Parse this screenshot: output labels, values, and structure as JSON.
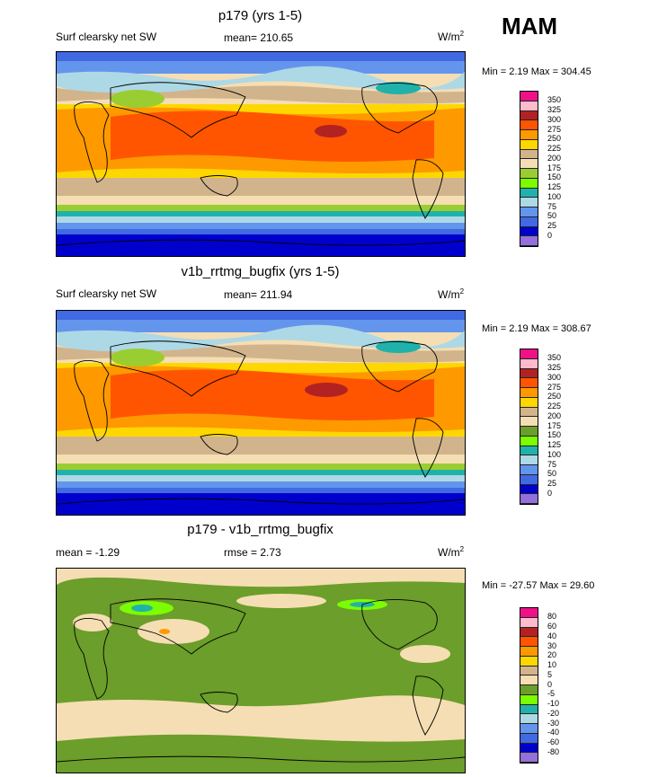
{
  "season": "MAM",
  "units_main": "W/m",
  "units_sup": "2",
  "units_diff": "W/m",
  "panels": [
    {
      "title": "p179 (yrs 1-5)",
      "variable": "Surf clearsky net SW",
      "mean_text": "mean= 210.65",
      "minmax_text": "Min =   2.19 Max = 304.45"
    },
    {
      "title": "v1b_rrtmg_bugfix (yrs 1-5)",
      "variable": "Surf clearsky net SW",
      "mean_text": "mean= 211.94",
      "minmax_text": "Min =   2.19 Max = 308.67"
    },
    {
      "title": "p179 - v1b_rrtmg_bugfix",
      "mean_text": "mean =  -1.29",
      "rmse_text": "rmse =   2.73",
      "minmax_text": "Min = -27.57 Max =  29.60"
    }
  ],
  "colorbar_abs": {
    "labels": [
      "350",
      "325",
      "300",
      "275",
      "250",
      "225",
      "200",
      "175",
      "150",
      "125",
      "100",
      "75",
      "50",
      "25",
      "0"
    ],
    "colors": [
      "#ee1188",
      "#ffbbcc",
      "#b22222",
      "#ff5500",
      "#ff9900",
      "#ffd700",
      "#d2b48c",
      "#f5deb3",
      "#9acd32",
      "#7cfc00",
      "#20b2aa",
      "#add8e6",
      "#6495ed",
      "#4169e1",
      "#0000cd",
      "#9370db"
    ]
  },
  "colorbar_diff": {
    "labels": [
      "80",
      "60",
      "40",
      "30",
      "20",
      "10",
      "5",
      "0",
      "-5",
      "-10",
      "-20",
      "-30",
      "-40",
      "-60",
      "-80"
    ],
    "colors": [
      "#ee1188",
      "#ffbbcc",
      "#b22222",
      "#ff5500",
      "#ff9900",
      "#ffd700",
      "#d2b48c",
      "#f5deb3",
      "#6b9e2a",
      "#7cfc00",
      "#20b2aa",
      "#add8e6",
      "#6495ed",
      "#4169e1",
      "#0000cd",
      "#9370db"
    ]
  }
}
